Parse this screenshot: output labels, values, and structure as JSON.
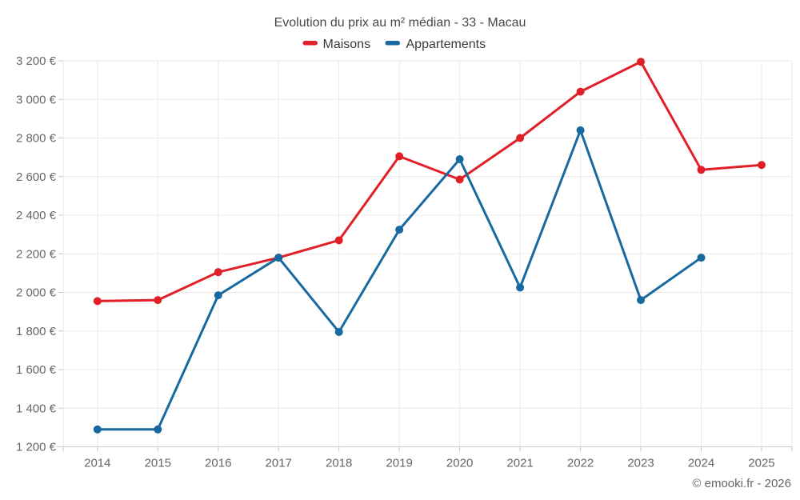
{
  "page": {
    "footer": "© emooki.fr - 2026"
  },
  "colors": {
    "maisons": "#e01f26",
    "appartements": "#17699f",
    "grid": "#e9e9e9",
    "axis": "#c9c9c9",
    "tick_label": "#666666",
    "title_text": "#474747",
    "legend_text": "#3a3a3a",
    "background": "#ffffff"
  },
  "chart_data": {
    "type": "line",
    "title": "Evolution du prix au m² médian - 33 - Macau",
    "xlabel": "",
    "ylabel": "",
    "x": [
      "2014",
      "2015",
      "2016",
      "2017",
      "2018",
      "2019",
      "2020",
      "2021",
      "2022",
      "2023",
      "2024",
      "2025"
    ],
    "series": [
      {
        "name": "Maisons",
        "color": "#e01f26",
        "values": [
          1955,
          1960,
          2105,
          2180,
          2270,
          2705,
          2585,
          2800,
          3040,
          3195,
          2635,
          2660
        ]
      },
      {
        "name": "Appartements",
        "color": "#17699f",
        "values": [
          1290,
          1290,
          1985,
          2180,
          1795,
          2325,
          2690,
          2025,
          2840,
          1960,
          2180,
          null
        ]
      }
    ],
    "ylim": [
      1200,
      3200
    ],
    "y_tick_step": 200,
    "y_tick_labels": [
      "1 200 €",
      "1 400 €",
      "1 600 €",
      "1 800 €",
      "2 000 €",
      "2 200 €",
      "2 400 €",
      "2 600 €",
      "2 800 €",
      "3 000 €",
      "3 200 €"
    ],
    "grid": true,
    "legend_position": "top-center",
    "marker": "circle",
    "marker_radius": 5,
    "line_width": 3
  }
}
